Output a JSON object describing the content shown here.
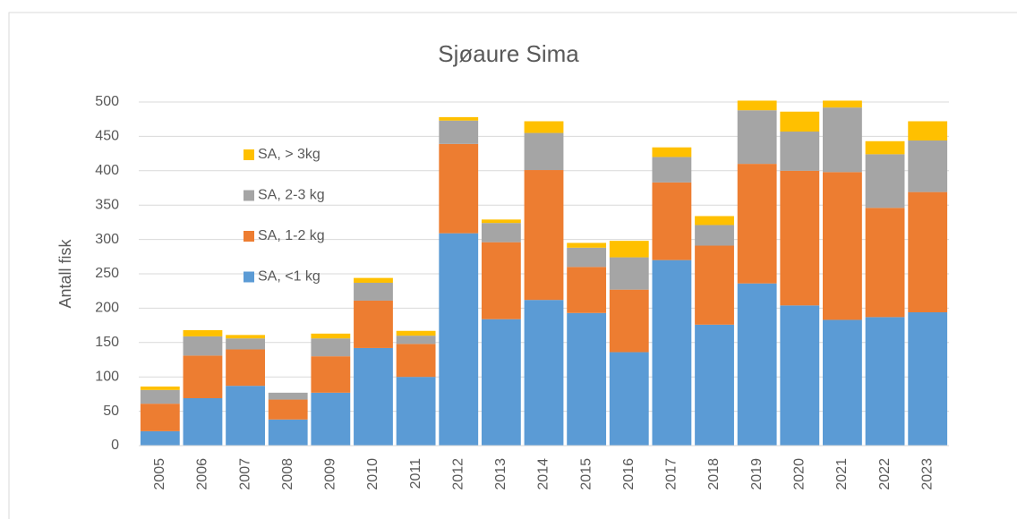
{
  "chart_data": {
    "type": "stacked_bar",
    "title": "Sjøaure Sima",
    "y_label": "Antall fisk",
    "categories": [
      "2005",
      "2006",
      "2007",
      "2008",
      "2009",
      "2010",
      "2011",
      "2012",
      "2013",
      "2014",
      "2015",
      "2016",
      "2017",
      "2018",
      "2019",
      "2020",
      "2021",
      "2022",
      "2023"
    ],
    "series": [
      {
        "name": "SA, <1 kg",
        "color": "#5b9bd5",
        "values": [
          21,
          69,
          87,
          38,
          77,
          142,
          100,
          309,
          184,
          212,
          193,
          136,
          270,
          176,
          236,
          204,
          183,
          187,
          194
        ]
      },
      {
        "name": "SA, 1-2 kg",
        "color": "#ed7d31",
        "values": [
          40,
          62,
          53,
          29,
          53,
          69,
          48,
          130,
          112,
          189,
          67,
          91,
          113,
          115,
          174,
          196,
          215,
          159,
          175
        ]
      },
      {
        "name": "SA, 2-3 kg",
        "color": "#a5a5a5",
        "values": [
          20,
          28,
          16,
          10,
          26,
          26,
          12,
          34,
          28,
          54,
          28,
          47,
          37,
          30,
          78,
          57,
          94,
          78,
          75
        ]
      },
      {
        "name": "SA, > 3kg",
        "color": "#ffc000",
        "values": [
          5,
          9,
          5,
          0,
          7,
          7,
          7,
          5,
          5,
          17,
          7,
          24,
          14,
          13,
          14,
          29,
          10,
          19,
          28
        ]
      }
    ],
    "ylim": [
      0,
      500
    ],
    "yticks": [
      0,
      50,
      100,
      150,
      200,
      250,
      300,
      350,
      400,
      450,
      500
    ],
    "grid": true,
    "legend": "upper left"
  }
}
